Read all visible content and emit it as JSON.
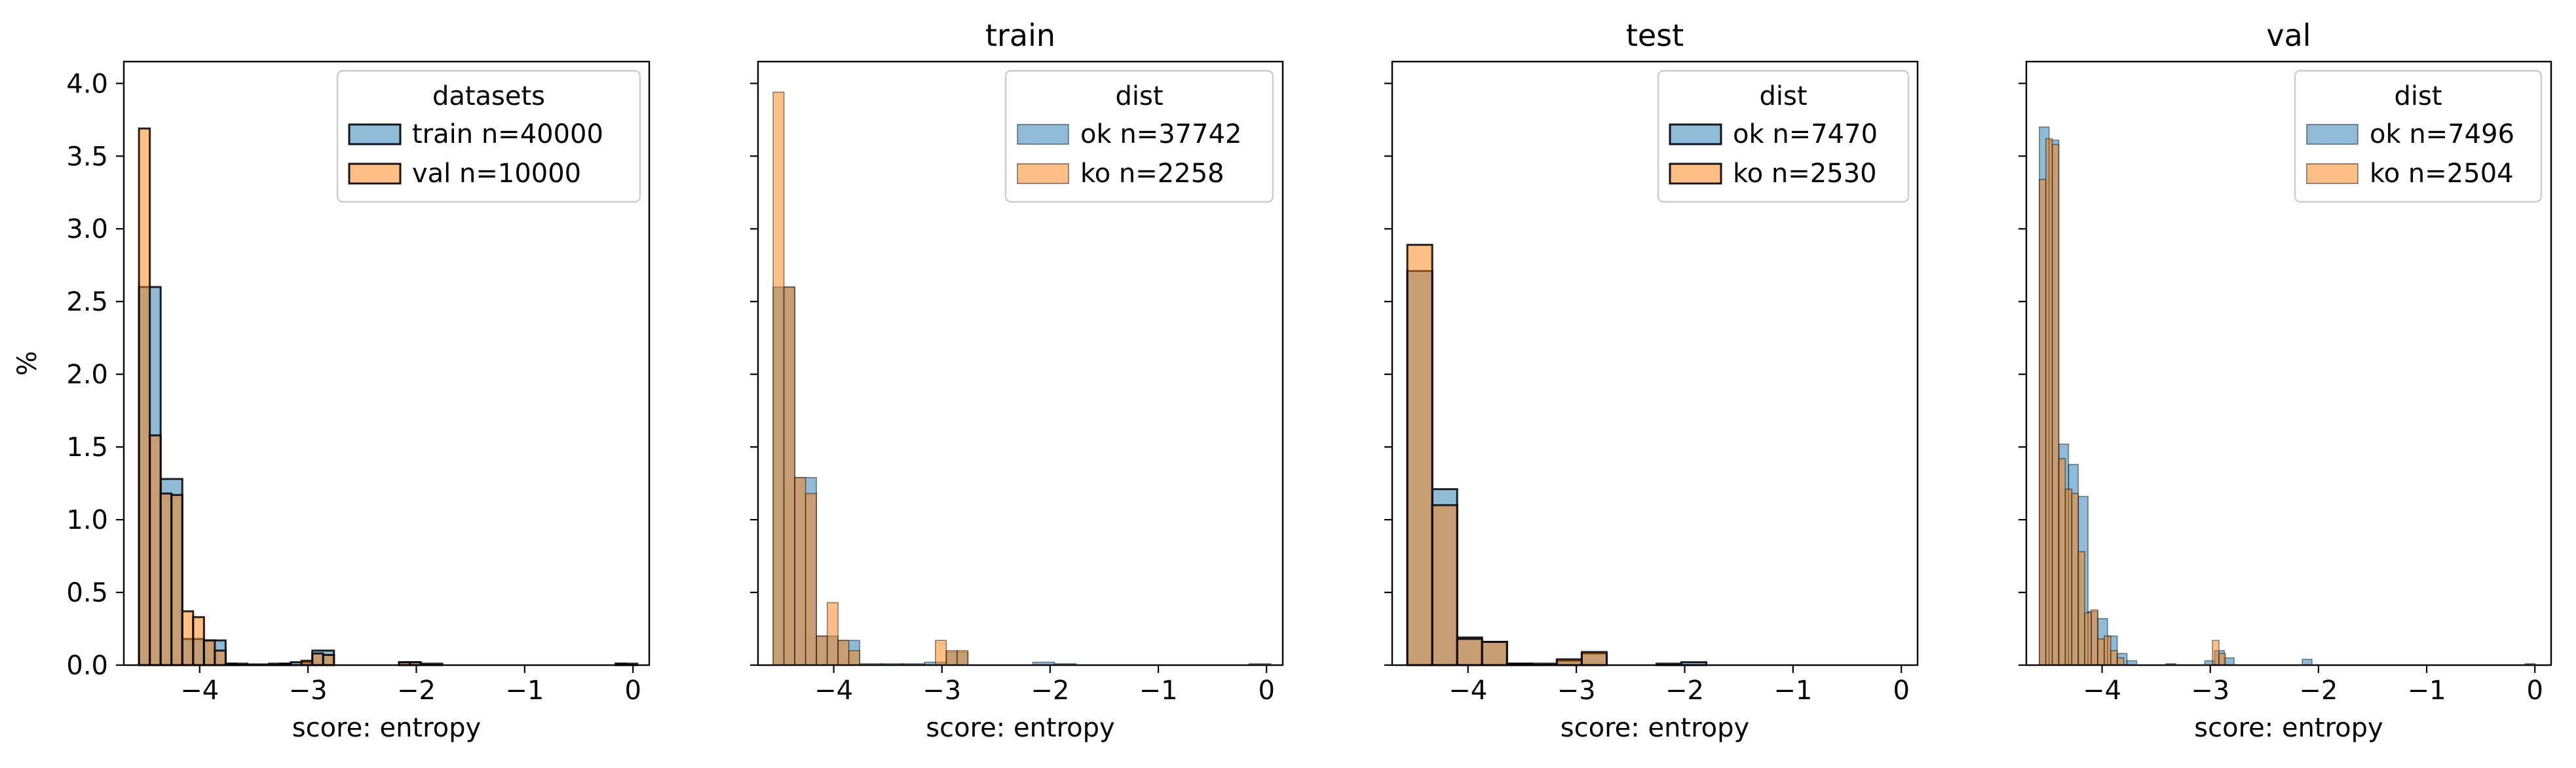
{
  "chart_data": [
    {
      "type": "histogram",
      "title": "",
      "xlabel": "score: entropy",
      "ylabel": "%",
      "xlim": [
        -4.7,
        0.15
      ],
      "ylim": [
        0,
        4.15
      ],
      "xticks": [
        -4,
        -3,
        -2,
        -1,
        0
      ],
      "xtick_labels": [
        "−4",
        "−3",
        "−2",
        "−1",
        "0"
      ],
      "yticks": [
        0.0,
        0.5,
        1.0,
        1.5,
        2.0,
        2.5,
        3.0,
        3.5,
        4.0
      ],
      "ytick_labels": [
        "0.0",
        "0.5",
        "1.0",
        "1.5",
        "2.0",
        "2.5",
        "3.0",
        "3.5",
        "4.0"
      ],
      "show_yticklabels": true,
      "legend": {
        "title": "datasets",
        "placement": "upper right",
        "edgecolor_bold": true
      },
      "series": [
        {
          "name": "train n=40000",
          "color": "#1f77b4",
          "bins": [
            {
              "x0": -4.56,
              "x1": -4.36,
              "y": 2.6
            },
            {
              "x0": -4.36,
              "x1": -4.16,
              "y": 1.28
            },
            {
              "x0": -4.16,
              "x1": -3.96,
              "y": 0.18
            },
            {
              "x0": -3.96,
              "x1": -3.76,
              "y": 0.17
            },
            {
              "x0": -3.76,
              "x1": -3.56,
              "y": 0.01
            },
            {
              "x0": -3.56,
              "x1": -3.36,
              "y": 0.005
            },
            {
              "x0": -3.36,
              "x1": -3.16,
              "y": 0.01
            },
            {
              "x0": -3.16,
              "x1": -2.96,
              "y": 0.02
            },
            {
              "x0": -2.96,
              "x1": -2.76,
              "y": 0.1
            },
            {
              "x0": -2.16,
              "x1": -1.96,
              "y": 0.02
            },
            {
              "x0": -1.96,
              "x1": -1.76,
              "y": 0.01
            },
            {
              "x0": -0.16,
              "x1": 0.04,
              "y": 0.01
            }
          ]
        },
        {
          "name": "val n=10000",
          "color": "#ff7f0e",
          "bins": [
            {
              "x0": -4.56,
              "x1": -4.46,
              "y": 3.69
            },
            {
              "x0": -4.46,
              "x1": -4.36,
              "y": 1.58
            },
            {
              "x0": -4.36,
              "x1": -4.26,
              "y": 1.18
            },
            {
              "x0": -4.26,
              "x1": -4.16,
              "y": 1.17
            },
            {
              "x0": -4.16,
              "x1": -4.06,
              "y": 0.37
            },
            {
              "x0": -4.06,
              "x1": -3.96,
              "y": 0.33
            },
            {
              "x0": -3.96,
              "x1": -3.86,
              "y": 0.17
            },
            {
              "x0": -3.86,
              "x1": -3.76,
              "y": 0.1
            },
            {
              "x0": -3.76,
              "x1": -3.66,
              "y": 0.01
            },
            {
              "x0": -3.26,
              "x1": -3.16,
              "y": 0.01
            },
            {
              "x0": -3.06,
              "x1": -2.96,
              "y": 0.03
            },
            {
              "x0": -2.96,
              "x1": -2.86,
              "y": 0.08
            },
            {
              "x0": -2.86,
              "x1": -2.76,
              "y": 0.07
            },
            {
              "x0": -2.16,
              "x1": -2.06,
              "y": 0.02
            },
            {
              "x0": -2.06,
              "x1": -1.96,
              "y": 0.02
            },
            {
              "x0": -0.16,
              "x1": -0.06,
              "y": 0.01
            }
          ]
        }
      ]
    },
    {
      "type": "histogram",
      "title": "train",
      "xlabel": "score: entropy",
      "ylabel": "",
      "xlim": [
        -4.7,
        0.15
      ],
      "ylim": [
        0,
        4.15
      ],
      "xticks": [
        -4,
        -3,
        -2,
        -1,
        0
      ],
      "xtick_labels": [
        "−4",
        "−3",
        "−2",
        "−1",
        "0"
      ],
      "yticks": [
        0.0,
        0.5,
        1.0,
        1.5,
        2.0,
        2.5,
        3.0,
        3.5,
        4.0
      ],
      "ytick_labels": [],
      "show_yticklabels": false,
      "legend": {
        "title": "dist",
        "placement": "upper right",
        "edgecolor_bold": false
      },
      "series": [
        {
          "name": "ok n=37742",
          "color": "#1f77b4",
          "bins": [
            {
              "x0": -4.56,
              "x1": -4.36,
              "y": 2.6
            },
            {
              "x0": -4.36,
              "x1": -4.16,
              "y": 1.29
            },
            {
              "x0": -4.16,
              "x1": -3.96,
              "y": 0.2
            },
            {
              "x0": -3.96,
              "x1": -3.76,
              "y": 0.17
            },
            {
              "x0": -3.76,
              "x1": -3.56,
              "y": 0.01
            },
            {
              "x0": -3.56,
              "x1": -3.36,
              "y": 0.01
            },
            {
              "x0": -3.36,
              "x1": -3.16,
              "y": 0.01
            },
            {
              "x0": -3.16,
              "x1": -2.96,
              "y": 0.02
            },
            {
              "x0": -2.96,
              "x1": -2.76,
              "y": 0.09
            },
            {
              "x0": -2.16,
              "x1": -1.96,
              "y": 0.02
            },
            {
              "x0": -1.96,
              "x1": -1.76,
              "y": 0.01
            },
            {
              "x0": -0.16,
              "x1": 0.04,
              "y": 0.01
            }
          ]
        },
        {
          "name": "ko n=2258",
          "color": "#ff7f0e",
          "bins": [
            {
              "x0": -4.56,
              "x1": -4.46,
              "y": 3.94
            },
            {
              "x0": -4.46,
              "x1": -4.36,
              "y": 2.6
            },
            {
              "x0": -4.36,
              "x1": -4.26,
              "y": 1.29
            },
            {
              "x0": -4.26,
              "x1": -4.16,
              "y": 1.18
            },
            {
              "x0": -4.16,
              "x1": -4.06,
              "y": 0.2
            },
            {
              "x0": -4.06,
              "x1": -3.96,
              "y": 0.43
            },
            {
              "x0": -3.96,
              "x1": -3.86,
              "y": 0.17
            },
            {
              "x0": -3.86,
              "x1": -3.76,
              "y": 0.1
            },
            {
              "x0": -3.06,
              "x1": -2.96,
              "y": 0.17
            },
            {
              "x0": -2.96,
              "x1": -2.86,
              "y": 0.1
            },
            {
              "x0": -2.86,
              "x1": -2.76,
              "y": 0.1
            }
          ]
        }
      ]
    },
    {
      "type": "histogram",
      "title": "test",
      "xlabel": "score: entropy",
      "ylabel": "",
      "xlim": [
        -4.7,
        0.15
      ],
      "ylim": [
        0,
        4.15
      ],
      "xticks": [
        -4,
        -3,
        -2,
        -1,
        0
      ],
      "xtick_labels": [
        "−4",
        "−3",
        "−2",
        "−1",
        "0"
      ],
      "yticks": [
        0.0,
        0.5,
        1.0,
        1.5,
        2.0,
        2.5,
        3.0,
        3.5,
        4.0
      ],
      "ytick_labels": [],
      "show_yticklabels": false,
      "legend": {
        "title": "dist",
        "placement": "upper right",
        "edgecolor_bold": true
      },
      "series": [
        {
          "name": "ok n=7470",
          "color": "#1f77b4",
          "bins": [
            {
              "x0": -4.56,
              "x1": -4.33,
              "y": 2.71
            },
            {
              "x0": -4.33,
              "x1": -4.1,
              "y": 1.21
            },
            {
              "x0": -4.1,
              "x1": -3.87,
              "y": 0.19
            },
            {
              "x0": -3.87,
              "x1": -3.64,
              "y": 0.16
            },
            {
              "x0": -3.64,
              "x1": -3.41,
              "y": 0.01
            },
            {
              "x0": -3.41,
              "x1": -3.18,
              "y": 0.01
            },
            {
              "x0": -3.18,
              "x1": -2.95,
              "y": 0.03
            },
            {
              "x0": -2.95,
              "x1": -2.72,
              "y": 0.08
            },
            {
              "x0": -2.26,
              "x1": -2.03,
              "y": 0.01
            },
            {
              "x0": -2.03,
              "x1": -1.8,
              "y": 0.02
            }
          ]
        },
        {
          "name": "ko n=2530",
          "color": "#ff7f0e",
          "bins": [
            {
              "x0": -4.56,
              "x1": -4.33,
              "y": 2.89
            },
            {
              "x0": -4.33,
              "x1": -4.1,
              "y": 1.1
            },
            {
              "x0": -4.1,
              "x1": -3.87,
              "y": 0.18
            },
            {
              "x0": -3.87,
              "x1": -3.64,
              "y": 0.16
            },
            {
              "x0": -3.64,
              "x1": -3.41,
              "y": 0.01
            },
            {
              "x0": -3.18,
              "x1": -2.95,
              "y": 0.04
            },
            {
              "x0": -2.95,
              "x1": -2.72,
              "y": 0.09
            }
          ]
        }
      ]
    },
    {
      "type": "histogram",
      "title": "val",
      "xlabel": "score: entropy",
      "ylabel": "",
      "xlim": [
        -4.7,
        0.15
      ],
      "ylim": [
        0,
        4.15
      ],
      "xticks": [
        -4,
        -3,
        -2,
        -1,
        0
      ],
      "xtick_labels": [
        "−4",
        "−3",
        "−2",
        "−1",
        "0"
      ],
      "yticks": [
        0.0,
        0.5,
        1.0,
        1.5,
        2.0,
        2.5,
        3.0,
        3.5,
        4.0
      ],
      "ytick_labels": [],
      "show_yticklabels": false,
      "legend": {
        "title": "dist",
        "placement": "upper right",
        "edgecolor_bold": false
      },
      "series": [
        {
          "name": "ok n=7496",
          "color": "#1f77b4",
          "bins": [
            {
              "x0": -4.58,
              "x1": -4.49,
              "y": 3.7
            },
            {
              "x0": -4.49,
              "x1": -4.4,
              "y": 3.61
            },
            {
              "x0": -4.4,
              "x1": -4.31,
              "y": 1.52
            },
            {
              "x0": -4.31,
              "x1": -4.22,
              "y": 1.38
            },
            {
              "x0": -4.22,
              "x1": -4.13,
              "y": 1.16
            },
            {
              "x0": -4.13,
              "x1": -4.04,
              "y": 0.37
            },
            {
              "x0": -4.04,
              "x1": -3.95,
              "y": 0.32
            },
            {
              "x0": -3.95,
              "x1": -3.86,
              "y": 0.2
            },
            {
              "x0": -3.86,
              "x1": -3.77,
              "y": 0.08
            },
            {
              "x0": -3.77,
              "x1": -3.68,
              "y": 0.03
            },
            {
              "x0": -3.41,
              "x1": -3.32,
              "y": 0.01
            },
            {
              "x0": -3.05,
              "x1": -2.96,
              "y": 0.03
            },
            {
              "x0": -2.96,
              "x1": -2.87,
              "y": 0.1
            },
            {
              "x0": -2.87,
              "x1": -2.78,
              "y": 0.05
            },
            {
              "x0": -2.15,
              "x1": -2.06,
              "y": 0.04
            },
            {
              "x0": -0.09,
              "x1": 0.0,
              "y": 0.01
            }
          ]
        },
        {
          "name": "ko n=2504",
          "color": "#ff7f0e",
          "bins": [
            {
              "x0": -4.58,
              "x1": -4.52,
              "y": 3.34
            },
            {
              "x0": -4.52,
              "x1": -4.46,
              "y": 3.62
            },
            {
              "x0": -4.46,
              "x1": -4.4,
              "y": 3.58
            },
            {
              "x0": -4.4,
              "x1": -4.34,
              "y": 1.42
            },
            {
              "x0": -4.34,
              "x1": -4.28,
              "y": 1.21
            },
            {
              "x0": -4.28,
              "x1": -4.22,
              "y": 1.18
            },
            {
              "x0": -4.22,
              "x1": -4.16,
              "y": 0.78
            },
            {
              "x0": -4.16,
              "x1": -4.1,
              "y": 0.36
            },
            {
              "x0": -4.1,
              "x1": -4.04,
              "y": 0.38
            },
            {
              "x0": -4.04,
              "x1": -3.98,
              "y": 0.18
            },
            {
              "x0": -3.98,
              "x1": -3.92,
              "y": 0.2
            },
            {
              "x0": -3.92,
              "x1": -3.86,
              "y": 0.1
            },
            {
              "x0": -3.86,
              "x1": -3.8,
              "y": 0.05
            },
            {
              "x0": -2.98,
              "x1": -2.92,
              "y": 0.17
            },
            {
              "x0": -2.92,
              "x1": -2.86,
              "y": 0.08
            }
          ]
        }
      ]
    }
  ]
}
